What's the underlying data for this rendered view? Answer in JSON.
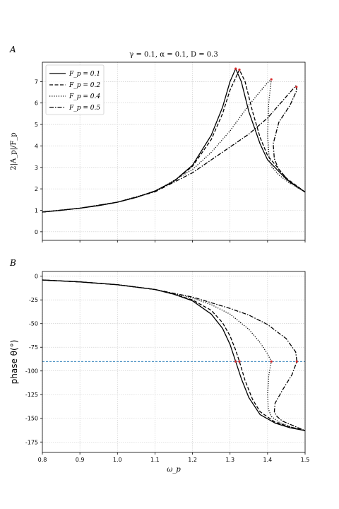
{
  "chart_data": [
    {
      "panel": "A",
      "type": "line",
      "title": "γ = 0.1,  α = 0.1,  D = 0.3",
      "xlabel": "",
      "ylabel": "2|A_p|/F_p",
      "xlim": [
        0.8,
        1.5
      ],
      "ylim": [
        -0.4,
        7.9
      ],
      "xticks": [
        0.8,
        0.9,
        1.0,
        1.1,
        1.2,
        1.3,
        1.4,
        1.5
      ],
      "yticks": [
        0,
        1,
        2,
        3,
        4,
        5,
        6,
        7
      ],
      "grid": true,
      "legend_position": "top-left",
      "series": [
        {
          "name": "F_p = 0.1",
          "style": "solid",
          "x": [
            0.8,
            0.85,
            0.9,
            0.95,
            1.0,
            1.05,
            1.1,
            1.15,
            1.2,
            1.25,
            1.28,
            1.3,
            1.315,
            1.33,
            1.35,
            1.38,
            1.4,
            1.45,
            1.5
          ],
          "y": [
            0.92,
            1.0,
            1.1,
            1.22,
            1.38,
            1.6,
            1.9,
            2.35,
            3.1,
            4.5,
            5.8,
            7.0,
            7.6,
            7.0,
            5.6,
            4.1,
            3.35,
            2.45,
            1.85
          ]
        },
        {
          "name": "F_p = 0.2",
          "style": "dashed",
          "x": [
            0.8,
            0.85,
            0.9,
            0.95,
            1.0,
            1.05,
            1.1,
            1.15,
            1.2,
            1.25,
            1.28,
            1.3,
            1.325,
            1.34,
            1.36,
            1.38,
            1.4,
            1.45,
            1.5
          ],
          "y": [
            0.92,
            1.0,
            1.1,
            1.22,
            1.38,
            1.6,
            1.9,
            2.34,
            3.05,
            4.3,
            5.5,
            6.6,
            7.55,
            7.0,
            5.6,
            4.4,
            3.55,
            2.5,
            1.85
          ]
        },
        {
          "name": "F_p = 0.4",
          "style": "dotted",
          "x": [
            0.8,
            0.9,
            1.0,
            1.1,
            1.2,
            1.25,
            1.3,
            1.35,
            1.4,
            1.41,
            1.403,
            1.4,
            1.404,
            1.41,
            1.43,
            1.46,
            1.5
          ],
          "y": [
            0.92,
            1.1,
            1.38,
            1.88,
            2.9,
            3.7,
            4.7,
            5.9,
            6.95,
            7.1,
            6.0,
            4.5,
            3.5,
            3.05,
            2.65,
            2.25,
            1.85
          ]
        },
        {
          "name": "F_p = 0.5",
          "style": "dashdot",
          "x": [
            0.8,
            0.9,
            1.0,
            1.1,
            1.2,
            1.25,
            1.3,
            1.35,
            1.4,
            1.45,
            1.475,
            1.478,
            1.46,
            1.43,
            1.415,
            1.418,
            1.43,
            1.46,
            1.5
          ],
          "y": [
            0.92,
            1.1,
            1.38,
            1.86,
            2.75,
            3.35,
            3.95,
            4.55,
            5.3,
            6.3,
            6.8,
            6.6,
            5.9,
            5.1,
            4.1,
            3.4,
            2.9,
            2.3,
            1.85
          ]
        }
      ],
      "markers": [
        {
          "x": 1.315,
          "y": 7.6
        },
        {
          "x": 1.325,
          "y": 7.55
        },
        {
          "x": 1.41,
          "y": 7.1
        },
        {
          "x": 1.477,
          "y": 6.75
        }
      ]
    },
    {
      "panel": "B",
      "type": "line",
      "title": "",
      "xlabel": "ω_p",
      "ylabel": "phase θ(°)",
      "xlim": [
        0.8,
        1.5
      ],
      "ylim": [
        -186,
        5
      ],
      "xticks": [
        0.8,
        0.9,
        1.0,
        1.1,
        1.2,
        1.3,
        1.4,
        1.5
      ],
      "yticks": [
        0,
        -25,
        -50,
        -75,
        -100,
        -125,
        -150,
        -175
      ],
      "grid": true,
      "reference_line": {
        "y": -90,
        "color": "#1f77b4",
        "style": "dashed"
      },
      "series": [
        {
          "name": "F_p = 0.1",
          "style": "solid",
          "x": [
            0.8,
            0.9,
            1.0,
            1.1,
            1.15,
            1.2,
            1.25,
            1.28,
            1.3,
            1.315,
            1.33,
            1.35,
            1.38,
            1.42,
            1.46,
            1.5
          ],
          "y": [
            -4,
            -6,
            -9,
            -14,
            -19,
            -26,
            -40,
            -55,
            -72,
            -90,
            -108,
            -128,
            -146,
            -155,
            -160,
            -163
          ]
        },
        {
          "name": "F_p = 0.2",
          "style": "dashed",
          "x": [
            0.8,
            0.9,
            1.0,
            1.1,
            1.15,
            1.2,
            1.25,
            1.28,
            1.3,
            1.315,
            1.325,
            1.34,
            1.36,
            1.38,
            1.42,
            1.46,
            1.5
          ],
          "y": [
            -4,
            -6,
            -9,
            -14,
            -19,
            -25,
            -36,
            -49,
            -63,
            -78,
            -90,
            -110,
            -130,
            -143,
            -154,
            -159,
            -163
          ]
        },
        {
          "name": "F_p = 0.4",
          "style": "dotted",
          "x": [
            0.8,
            0.9,
            1.0,
            1.1,
            1.2,
            1.25,
            1.3,
            1.35,
            1.38,
            1.4,
            1.41,
            1.403,
            1.4,
            1.402,
            1.41,
            1.43,
            1.46,
            1.5
          ],
          "y": [
            -4,
            -6,
            -9,
            -14,
            -23,
            -30,
            -40,
            -56,
            -70,
            -82,
            -90,
            -105,
            -125,
            -140,
            -148,
            -154,
            -159,
            -163
          ]
        },
        {
          "name": "F_p = 0.5",
          "style": "dashdot",
          "x": [
            0.8,
            0.9,
            1.0,
            1.1,
            1.2,
            1.25,
            1.3,
            1.35,
            1.4,
            1.45,
            1.475,
            1.478,
            1.465,
            1.44,
            1.42,
            1.418,
            1.425,
            1.44,
            1.47,
            1.5
          ],
          "y": [
            -4,
            -6,
            -9,
            -14,
            -22,
            -28,
            -34,
            -41,
            -51,
            -66,
            -80,
            -90,
            -104,
            -120,
            -134,
            -143,
            -148,
            -153,
            -158,
            -163
          ]
        }
      ],
      "markers": [
        {
          "x": 1.315,
          "y": -90
        },
        {
          "x": 1.325,
          "y": -90
        },
        {
          "x": 1.41,
          "y": -90
        },
        {
          "x": 1.478,
          "y": -90
        }
      ]
    }
  ]
}
